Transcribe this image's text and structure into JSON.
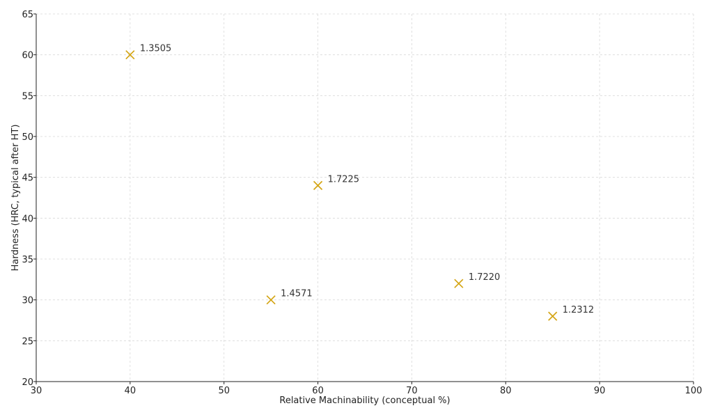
{
  "chart_data": {
    "type": "scatter",
    "title": "",
    "xlabel": "Relative Machinability (conceptual %)",
    "ylabel": "Hardness (HRC, typical after HT)",
    "xlim": [
      30,
      100
    ],
    "ylim": [
      20,
      65
    ],
    "x_ticks": [
      "30",
      "40",
      "50",
      "60",
      "70",
      "80",
      "90",
      "100"
    ],
    "y_ticks": [
      "20",
      "25",
      "30",
      "35",
      "40",
      "45",
      "50",
      "55",
      "60",
      "65"
    ],
    "grid": true,
    "marker": "x",
    "marker_color": "#d4a514",
    "points": [
      {
        "label": "1.3505",
        "x": 40,
        "y": 60
      },
      {
        "label": "1.7225",
        "x": 60,
        "y": 44
      },
      {
        "label": "1.4571",
        "x": 55,
        "y": 30
      },
      {
        "label": "1.7220",
        "x": 75,
        "y": 32
      },
      {
        "label": "1.2312",
        "x": 85,
        "y": 28
      }
    ]
  }
}
